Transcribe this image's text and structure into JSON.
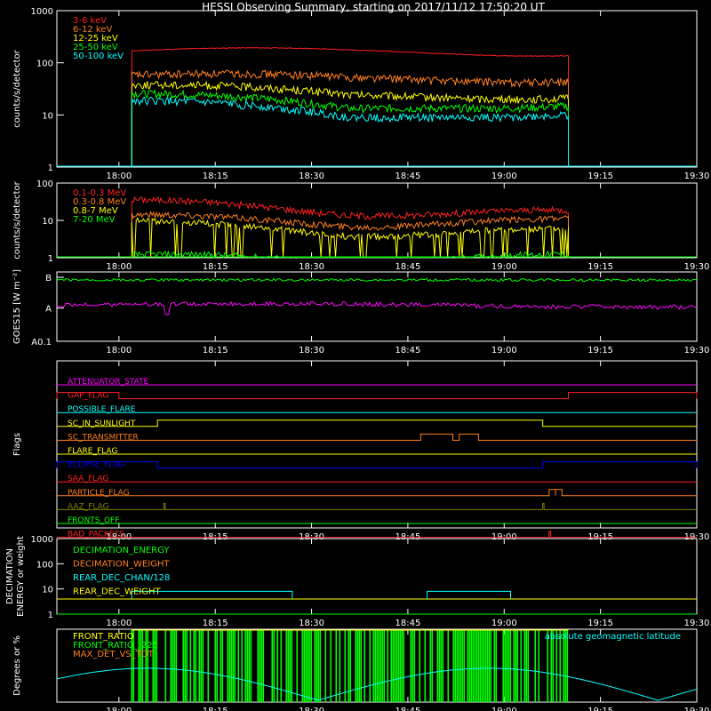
{
  "title": "HESSI Observing Summary, starting on 2017/11/12 17:50:20 UT",
  "colors": {
    "background": "#000000",
    "axes": "#ffffff",
    "red": "#ff2020",
    "orange": "#ff7f1f",
    "yellow": "#ffff00",
    "green": "#00ff00",
    "cyan": "#00ffff",
    "blue": "#0000ff",
    "magenta": "#ff00ff",
    "olive": "#808000"
  },
  "x_ticks": [
    "18:00",
    "18:15",
    "18:30",
    "18:45",
    "19:00",
    "19:15",
    "19:30"
  ],
  "chart_data": [
    {
      "type": "line",
      "ylabel": "counts/s/detector",
      "ylog": true,
      "ylim": [
        1,
        1000
      ],
      "yticks": [
        "1",
        "10",
        "100",
        "1000"
      ],
      "x_range": [
        "17:50:20",
        "19:30"
      ],
      "active_interval": [
        "18:02",
        "19:10"
      ],
      "series": [
        {
          "name": "3-6 keV",
          "color": "#ff2020",
          "start": 170,
          "mid": 160,
          "end": 165
        },
        {
          "name": "6-12 keV",
          "color": "#ff7f1f",
          "start": 58,
          "mid": 48,
          "end": 52
        },
        {
          "name": "12-25 keV",
          "color": "#ffff00",
          "start": 38,
          "mid": 22,
          "end": 25
        },
        {
          "name": "25-50 keV",
          "color": "#00ff00",
          "start": 26,
          "mid": 12,
          "end": 18
        },
        {
          "name": "50-100 keV",
          "color": "#00ffff",
          "start": 19,
          "mid": 8,
          "end": 12
        }
      ]
    },
    {
      "type": "line",
      "ylabel": "counts/s/detector",
      "ylog": true,
      "ylim": [
        1,
        100
      ],
      "yticks": [
        "1",
        "10",
        "100"
      ],
      "active_interval": [
        "18:02",
        "19:10"
      ],
      "series": [
        {
          "name": "0.1-0.3 MeV",
          "color": "#ff2020",
          "start": 30,
          "mid": 18,
          "end": 15
        },
        {
          "name": "0.3-0.8 MeV",
          "color": "#ff7f1f",
          "start": 12,
          "mid": 9,
          "end": 9
        },
        {
          "name": "0.8-7 MeV",
          "color": "#ffff00",
          "start": 8,
          "mid": 5,
          "end": 5
        },
        {
          "name": "7-20 MeV",
          "color": "#00ff00",
          "start": 1,
          "mid": 1,
          "end": 1
        }
      ]
    },
    {
      "type": "line",
      "ylabel": "GOES15 [W m⁻²]",
      "ylog": true,
      "yticks": [
        "A0.1",
        "A",
        "B"
      ],
      "series": [
        {
          "color": "#00ff00",
          "level": "B"
        },
        {
          "color": "#ff00ff",
          "level": "A"
        }
      ]
    },
    {
      "type": "line",
      "ylabel": "Flags",
      "flags": [
        {
          "name": "ATTENUATOR_STATE",
          "color": "#ff00ff",
          "high": []
        },
        {
          "name": "GAP_FLAG",
          "color": "#ff2020",
          "high": [
            [
              "17:50",
              "18:00"
            ],
            [
              "19:10",
              "19:30"
            ]
          ]
        },
        {
          "name": "POSSIBLE_FLARE",
          "color": "#00ffff",
          "high": []
        },
        {
          "name": "SC_IN_SUNLIGHT",
          "color": "#ffff00",
          "high": [
            [
              "18:06",
              "19:06"
            ]
          ]
        },
        {
          "name": "SC_TRANSMITTER",
          "color": "#ff7f1f",
          "high": [
            [
              "18:47",
              "18:52"
            ],
            [
              "18:53",
              "18:56"
            ]
          ]
        },
        {
          "name": "FLARE_FLAG",
          "color": "#ffff00",
          "high": []
        },
        {
          "name": "ECLIPSE_FLAG",
          "color": "#0000ff",
          "high": [
            [
              "17:50",
              "18:06"
            ],
            [
              "19:06",
              "19:30"
            ]
          ]
        },
        {
          "name": "SAA_FLAG",
          "color": "#ff2020",
          "high": []
        },
        {
          "name": "PARTICLE_FLAG",
          "color": "#ff7f1f",
          "high": [
            [
              "19:07",
              "19:08"
            ],
            [
              "19:08",
              "19:09"
            ]
          ]
        },
        {
          "name": "AAZ_FLAG",
          "color": "#808000",
          "high": [
            [
              "18:07",
              "18:07"
            ],
            [
              "19:06",
              "19:06"
            ]
          ]
        },
        {
          "name": "FRONTS_OFF",
          "color": "#00ff00",
          "high": []
        },
        {
          "name": "BAD_PACKETS",
          "color": "#ff2020",
          "high": [
            [
              "19:07",
              "19:07"
            ]
          ]
        }
      ]
    },
    {
      "type": "line",
      "ylabel": "DECIMATION ENERGY or weight",
      "ylog": true,
      "ylim": [
        1,
        1000
      ],
      "yticks": [
        "1",
        "10",
        "100",
        "1000"
      ],
      "series": [
        {
          "name": "DECIMATION_ENERGY",
          "color": "#00ff00",
          "value": 1
        },
        {
          "name": "DECIMATION_WEIGHT",
          "color": "#ff7f1f",
          "value": 4
        },
        {
          "name": "REAR_DEC_CHAN/128",
          "color": "#00ffff",
          "value": 8,
          "intervals": [
            [
              "18:02",
              "18:27"
            ],
            [
              "18:48",
              "19:01"
            ]
          ]
        },
        {
          "name": "REAR_DEC_WEIGHT",
          "color": "#ffff00",
          "value": 4
        }
      ]
    },
    {
      "type": "line",
      "ylabel": "Degrees or %",
      "series": [
        {
          "name": "FRONT_RATIO",
          "color": "#ffff00"
        },
        {
          "name": "FRONT_RATIO_ 225",
          "color": "#00ff00"
        },
        {
          "name": "MAX_DET_VS_TOT",
          "color": "#ff7f1f"
        },
        {
          "name": "absolute geomagnetic latitude",
          "color": "#00ffff",
          "minima": [
            "18:31",
            "19:24"
          ],
          "maxima": [
            "18:12",
            "18:58"
          ]
        }
      ]
    }
  ]
}
